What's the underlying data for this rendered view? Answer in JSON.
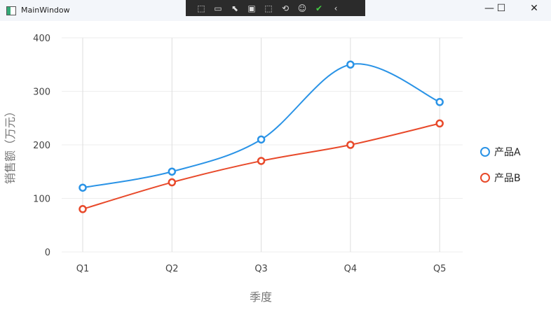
{
  "window": {
    "title": "MainWindow",
    "minimize": "—",
    "maximize": "☐",
    "close": "✕"
  },
  "devtools": {
    "icons": [
      "select-element-icon",
      "record-icon",
      "pointer-icon",
      "frame-icon",
      "track-focus-icon",
      "hot-reload-icon",
      "accessibility-icon",
      "check-icon",
      "collapse-icon"
    ],
    "glyphs": [
      "⬚",
      "▭",
      "⬉",
      "▣",
      "⬚",
      "⟲",
      "☺",
      "✔",
      "‹"
    ]
  },
  "chart_data": {
    "type": "line",
    "categories": [
      "Q1",
      "Q2",
      "Q3",
      "Q4",
      "Q5"
    ],
    "xlabel": "季度",
    "ylabel": "销售额（万元）",
    "ylim": [
      0,
      400
    ],
    "yticks": [
      "0",
      "100",
      "200",
      "300",
      "400"
    ],
    "grid": true,
    "legend_position": "right",
    "smooth": true,
    "series": [
      {
        "name": "产品A",
        "values": [
          120,
          150,
          210,
          350,
          280
        ],
        "color": "#2a93e6"
      },
      {
        "name": "产品B",
        "values": [
          80,
          130,
          170,
          200,
          240
        ],
        "color": "#e8492a"
      }
    ]
  }
}
